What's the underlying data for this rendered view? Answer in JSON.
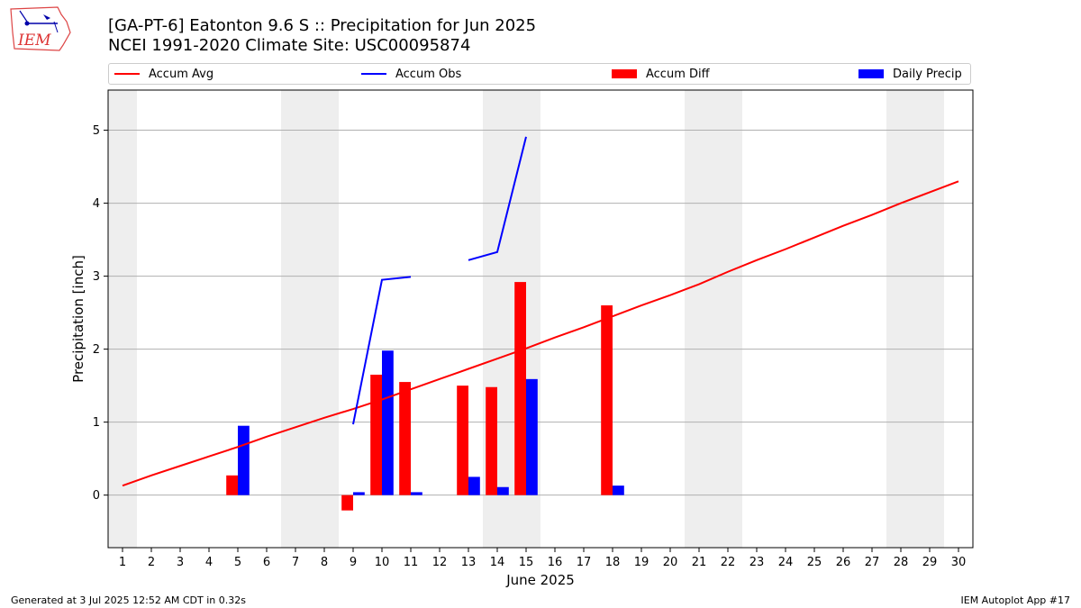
{
  "header": {
    "logo_text": "IEM",
    "title_line1": "[GA-PT-6] Eatonton 9.6 S :: Precipitation for Jun 2025",
    "title_line2": "NCEI 1991-2020 Climate Site: USC00095874"
  },
  "legend": {
    "placement": "top",
    "items": [
      {
        "label": "Accum Avg",
        "color": "#ff0000",
        "kind": "line"
      },
      {
        "label": "Accum Obs",
        "color": "#0000ff",
        "kind": "line"
      },
      {
        "label": "Accum Diff",
        "color": "#ff0000",
        "kind": "bar"
      },
      {
        "label": "Daily Precip",
        "color": "#0000ff",
        "kind": "bar"
      }
    ]
  },
  "chart_data": {
    "type": "bar",
    "xlabel": "June 2025",
    "ylabel": "Precipitation [inch]",
    "xlim": [
      0.5,
      30.5
    ],
    "ylim": [
      -0.72,
      5.55
    ],
    "xticks": [
      1,
      2,
      3,
      4,
      5,
      6,
      7,
      8,
      9,
      10,
      11,
      12,
      13,
      14,
      15,
      16,
      17,
      18,
      19,
      20,
      21,
      22,
      23,
      24,
      25,
      26,
      27,
      28,
      29,
      30
    ],
    "yticks": [
      0,
      1,
      2,
      3,
      4,
      5
    ],
    "grid": "horizontal",
    "weekend_bands": [
      [
        0.5,
        1.5
      ],
      [
        6.5,
        8.5
      ],
      [
        13.5,
        15.5
      ],
      [
        20.5,
        22.5
      ],
      [
        27.5,
        29.5
      ]
    ],
    "accum_avg": {
      "name": "Accum Avg",
      "color": "#ff0000",
      "x": [
        1,
        2,
        3,
        4,
        5,
        6,
        7,
        8,
        9,
        10,
        11,
        12,
        13,
        14,
        15,
        16,
        17,
        18,
        19,
        20,
        21,
        22,
        23,
        24,
        25,
        26,
        27,
        28,
        29,
        30
      ],
      "values": [
        0.13,
        0.27,
        0.4,
        0.53,
        0.66,
        0.8,
        0.93,
        1.06,
        1.18,
        1.31,
        1.45,
        1.59,
        1.73,
        1.87,
        2.01,
        2.16,
        2.3,
        2.45,
        2.6,
        2.74,
        2.89,
        3.06,
        3.22,
        3.37,
        3.53,
        3.69,
        3.84,
        4.0,
        4.15,
        4.3
      ]
    },
    "accum_obs": {
      "name": "Accum Obs",
      "color": "#0000ff",
      "segments": [
        {
          "x": [
            9,
            10,
            11
          ],
          "values": [
            0.97,
            2.95,
            2.99
          ]
        },
        {
          "x": [
            13,
            14,
            15
          ],
          "values": [
            3.22,
            3.33,
            4.91
          ]
        }
      ]
    },
    "accum_diff": {
      "name": "Accum Diff",
      "color": "#ff0000",
      "x": [
        5,
        9,
        10,
        11,
        13,
        14,
        15,
        18
      ],
      "values": [
        0.27,
        -0.21,
        1.65,
        1.55,
        1.5,
        1.48,
        2.92,
        2.6
      ]
    },
    "daily_precip": {
      "name": "Daily Precip",
      "color": "#0000ff",
      "x": [
        5,
        9,
        10,
        11,
        13,
        14,
        15,
        18
      ],
      "values": [
        0.95,
        0.04,
        1.98,
        0.04,
        0.25,
        0.11,
        1.59,
        0.13
      ]
    }
  },
  "footer": {
    "generated": "Generated at 3 Jul 2025 12:52 AM CDT in 0.32s",
    "app": "IEM Autoplot App #17"
  }
}
